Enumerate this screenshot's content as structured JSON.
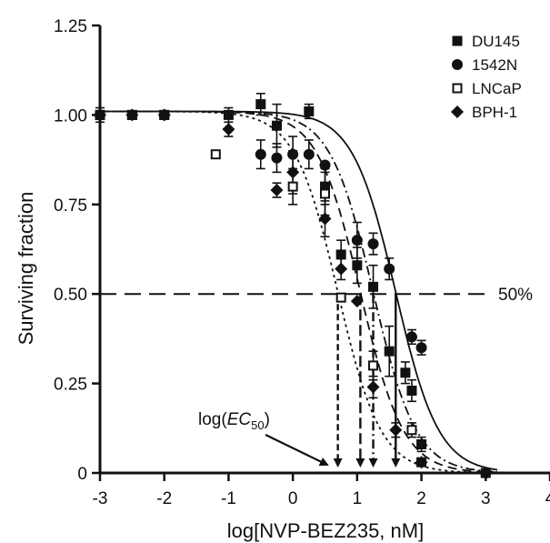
{
  "chart_data": {
    "type": "scatter",
    "xlabel": "log[NVP-BEZ235, nM]",
    "ylabel": "Surviving fraction",
    "xlim": [
      -3,
      4
    ],
    "ylim": [
      0,
      1.25
    ],
    "x_ticks": [
      "-3",
      "-2",
      "-1",
      "0",
      "1",
      "2",
      "3",
      "4"
    ],
    "y_ticks": [
      "0",
      "0.25",
      "0.50",
      "0.75",
      "1.00",
      "1.25"
    ],
    "legend_position": "top-right",
    "series": [
      {
        "name": "DU145",
        "marker": "square-filled",
        "line_style": "dashed",
        "ec50_log": 1.05,
        "points": [
          {
            "x": -3,
            "y": 1.0,
            "err": 0.02
          },
          {
            "x": -2.5,
            "y": 1.0,
            "err": 0.01
          },
          {
            "x": -2,
            "y": 1.0,
            "err": 0.01
          },
          {
            "x": -1,
            "y": 1.0,
            "err": 0.02
          },
          {
            "x": -0.5,
            "y": 1.03,
            "err": 0.03
          },
          {
            "x": -0.25,
            "y": 0.97,
            "err": 0.06
          },
          {
            "x": 0.25,
            "y": 1.01,
            "err": 0.02
          },
          {
            "x": 0.5,
            "y": 0.8,
            "err": 0.05
          },
          {
            "x": 0.75,
            "y": 0.61,
            "err": 0.04
          },
          {
            "x": 1.0,
            "y": 0.58,
            "err": 0.05
          },
          {
            "x": 1.25,
            "y": 0.52,
            "err": 0.06
          },
          {
            "x": 1.5,
            "y": 0.34,
            "err": 0.07
          },
          {
            "x": 1.75,
            "y": 0.28,
            "err": 0.03
          },
          {
            "x": 1.85,
            "y": 0.23,
            "err": 0.03
          },
          {
            "x": 2.0,
            "y": 0.08,
            "err": 0.02
          },
          {
            "x": 3.0,
            "y": 0.0,
            "err": 0.01
          }
        ]
      },
      {
        "name": "1542N",
        "marker": "circle-filled",
        "line_style": "solid",
        "ec50_log": 1.6,
        "points": [
          {
            "x": -3,
            "y": 1.0,
            "err": 0.01
          },
          {
            "x": -2,
            "y": 1.0,
            "err": 0.01
          },
          {
            "x": -0.5,
            "y": 0.89,
            "err": 0.04
          },
          {
            "x": -0.25,
            "y": 0.88,
            "err": 0.04
          },
          {
            "x": 0.0,
            "y": 0.89,
            "err": 0.05
          },
          {
            "x": 0.25,
            "y": 0.89,
            "err": 0.04
          },
          {
            "x": 0.5,
            "y": 0.86,
            "err": 0.01
          },
          {
            "x": 1.0,
            "y": 0.65,
            "err": 0.05
          },
          {
            "x": 1.25,
            "y": 0.64,
            "err": 0.03
          },
          {
            "x": 1.5,
            "y": 0.57,
            "err": 0.03
          },
          {
            "x": 1.85,
            "y": 0.38,
            "err": 0.02
          },
          {
            "x": 2.0,
            "y": 0.35,
            "err": 0.02
          },
          {
            "x": 3.0,
            "y": 0.0,
            "err": 0.01
          }
        ]
      },
      {
        "name": "LNCaP",
        "marker": "square-open",
        "line_style": "dotted",
        "ec50_log": 0.7,
        "points": [
          {
            "x": -3,
            "y": 1.0,
            "err": 0.01
          },
          {
            "x": -2.5,
            "y": 1.0,
            "err": 0.01
          },
          {
            "x": -2,
            "y": 1.0,
            "err": 0.01
          },
          {
            "x": -1.2,
            "y": 0.89,
            "err": 0.01
          },
          {
            "x": 0.0,
            "y": 0.8,
            "err": 0.05
          },
          {
            "x": 0.5,
            "y": 0.78,
            "err": 0.06
          },
          {
            "x": 0.75,
            "y": 0.49,
            "err": 0.01
          },
          {
            "x": 1.25,
            "y": 0.3,
            "err": 0.04
          },
          {
            "x": 1.85,
            "y": 0.12,
            "err": 0.02
          },
          {
            "x": 2.0,
            "y": 0.03,
            "err": 0.01
          }
        ]
      },
      {
        "name": "BPH-1",
        "marker": "diamond-filled",
        "line_style": "dash-dot",
        "ec50_log": 1.25,
        "points": [
          {
            "x": -3,
            "y": 1.0,
            "err": 0.01
          },
          {
            "x": -2.5,
            "y": 1.0,
            "err": 0.01
          },
          {
            "x": -2,
            "y": 1.0,
            "err": 0.01
          },
          {
            "x": -1,
            "y": 0.96,
            "err": 0.02
          },
          {
            "x": -0.25,
            "y": 0.79,
            "err": 0.02
          },
          {
            "x": 0.0,
            "y": 0.84,
            "err": 0.06
          },
          {
            "x": 0.5,
            "y": 0.71,
            "err": 0.05
          },
          {
            "x": 0.75,
            "y": 0.57,
            "err": 0.03
          },
          {
            "x": 1.0,
            "y": 0.48,
            "err": 0.01
          },
          {
            "x": 1.25,
            "y": 0.24,
            "err": 0.03
          },
          {
            "x": 1.6,
            "y": 0.12,
            "err": 0.02
          },
          {
            "x": 2.0,
            "y": 0.03,
            "err": 0.01
          }
        ]
      }
    ],
    "reference_line": {
      "y": 0.5,
      "label": "50%"
    },
    "annotation": {
      "label_prefix": "log(",
      "label_ec": "EC",
      "label_sub": "50",
      "label_suffix": ")"
    }
  }
}
